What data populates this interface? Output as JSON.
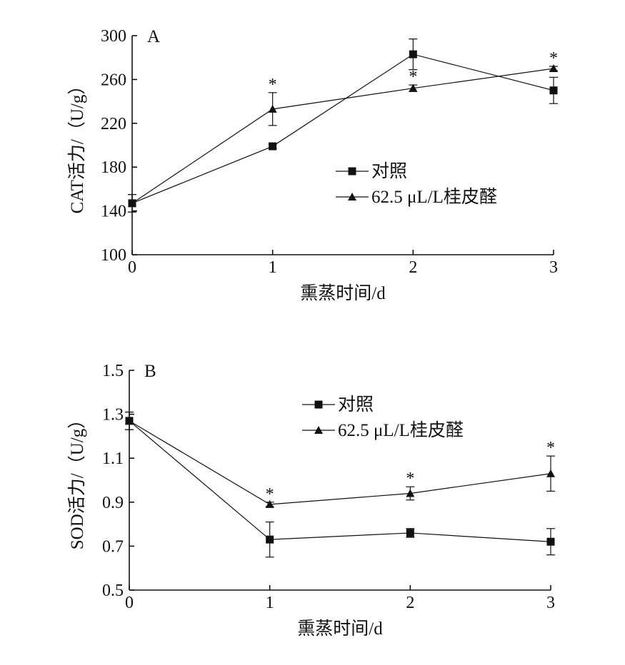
{
  "chart_data": [
    {
      "type": "line",
      "panel_label": "A",
      "title": "",
      "xlabel": "熏蒸时间/d",
      "ylabel": "CAT活力/（U/g）",
      "x": [
        0,
        1,
        2,
        3
      ],
      "xlim": [
        0,
        3
      ],
      "ylim": [
        100,
        300
      ],
      "xticks": [
        "0",
        "1",
        "2",
        "3"
      ],
      "yticks": [
        "100",
        "140",
        "180",
        "220",
        "260",
        "300"
      ],
      "grid": false,
      "legend_position": "center-right",
      "series": [
        {
          "name": "对照",
          "marker": "square",
          "values": [
            147,
            199,
            283,
            250
          ],
          "errors": [
            8,
            2,
            14,
            12
          ],
          "significance": [
            "",
            "",
            "",
            ""
          ]
        },
        {
          "name": "62.5 μL/L桂皮醛",
          "marker": "triangle",
          "values": [
            147,
            233,
            252,
            270
          ],
          "errors": [
            8,
            15,
            3,
            2
          ],
          "significance": [
            "",
            "*",
            "*",
            "*"
          ]
        }
      ]
    },
    {
      "type": "line",
      "panel_label": "B",
      "title": "",
      "xlabel": "熏蒸时间/d",
      "ylabel": "SOD活力/（U/g）",
      "x": [
        0,
        1,
        2,
        3
      ],
      "xlim": [
        0,
        3
      ],
      "ylim": [
        0.5,
        1.5
      ],
      "xticks": [
        "0",
        "1",
        "2",
        "3"
      ],
      "yticks": [
        "0.5",
        "0.7",
        "0.9",
        "1.1",
        "1.3",
        "1.5"
      ],
      "grid": false,
      "legend_position": "top-right",
      "series": [
        {
          "name": "对照",
          "marker": "square",
          "values": [
            1.27,
            0.73,
            0.76,
            0.72
          ],
          "errors": [
            0.04,
            0.08,
            0.02,
            0.06
          ],
          "significance": [
            "",
            "",
            "",
            ""
          ]
        },
        {
          "name": "62.5 μL/L桂皮醛",
          "marker": "triangle",
          "values": [
            1.27,
            0.89,
            0.94,
            1.03
          ],
          "errors": [
            0.04,
            0.01,
            0.03,
            0.08
          ],
          "significance": [
            "",
            "*",
            "*",
            "*"
          ]
        }
      ]
    }
  ]
}
